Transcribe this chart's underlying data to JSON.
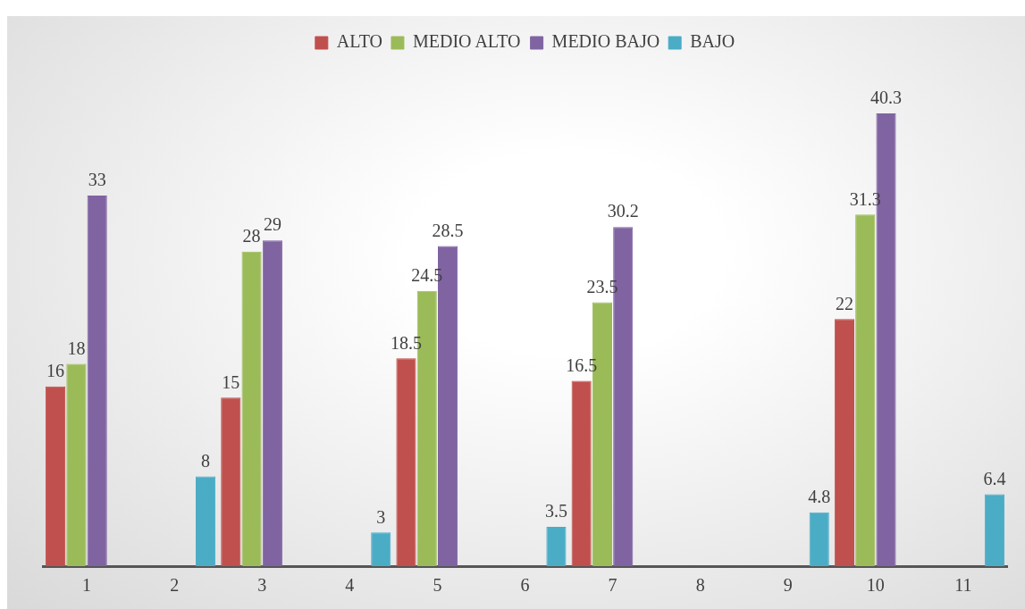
{
  "chart_data": {
    "type": "bar",
    "categories": [
      "1",
      "2",
      "3",
      "4",
      "5",
      "6",
      "7",
      "8",
      "9",
      "10",
      "11"
    ],
    "series": [
      {
        "name": "ALTO",
        "color": "#c0504d",
        "values": [
          16,
          null,
          15,
          null,
          18.5,
          null,
          16.5,
          null,
          null,
          22,
          null
        ]
      },
      {
        "name": "MEDIO ALTO",
        "color": "#9bbb59",
        "values": [
          18,
          null,
          28,
          null,
          24.5,
          null,
          23.5,
          null,
          null,
          31.3,
          null
        ]
      },
      {
        "name": "MEDIO BAJO",
        "color": "#8064a2",
        "values": [
          33,
          null,
          29,
          null,
          28.5,
          null,
          30.2,
          null,
          null,
          40.3,
          null
        ]
      },
      {
        "name": "BAJO",
        "color": "#4bacc6",
        "values": [
          null,
          8,
          null,
          3,
          null,
          3.5,
          null,
          null,
          4.8,
          null,
          6.4
        ]
      }
    ],
    "data_labels": true,
    "legend": "top",
    "tick_labels": "x",
    "grid": false
  }
}
